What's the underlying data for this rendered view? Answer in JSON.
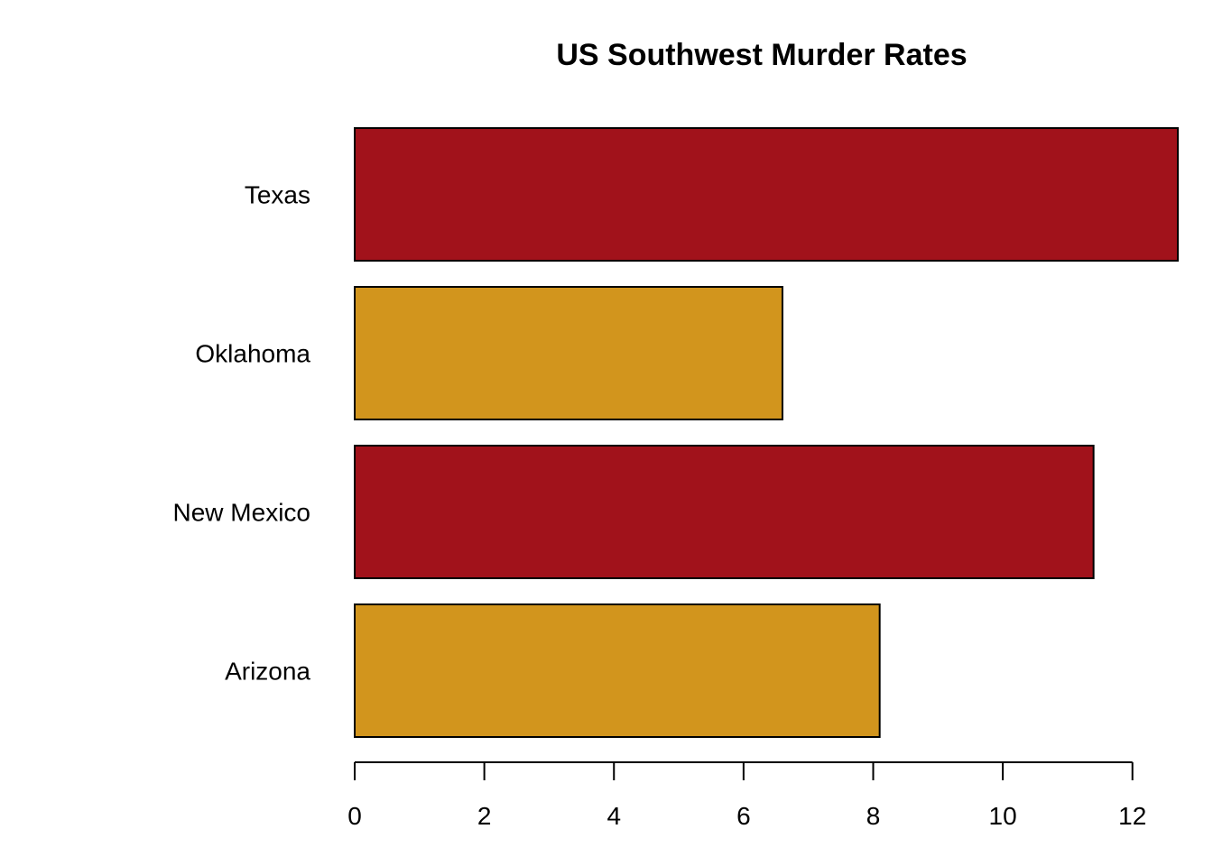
{
  "chart_data": {
    "type": "bar",
    "orientation": "horizontal",
    "title": "US Southwest Murder Rates",
    "xlabel": "",
    "ylabel": "",
    "categories": [
      "Arizona",
      "New Mexico",
      "Oklahoma",
      "Texas"
    ],
    "values": [
      8.1,
      11.4,
      6.6,
      12.7
    ],
    "colors": [
      "#D2951D",
      "#A1121B",
      "#D2951D",
      "#A1121B"
    ],
    "xlim": [
      0,
      12.7
    ],
    "x_ticks": [
      0,
      2,
      4,
      6,
      8,
      10,
      12
    ],
    "tick_labels": [
      "0",
      "2",
      "4",
      "6",
      "8",
      "10",
      "12"
    ],
    "grid": false,
    "legend": "none"
  }
}
